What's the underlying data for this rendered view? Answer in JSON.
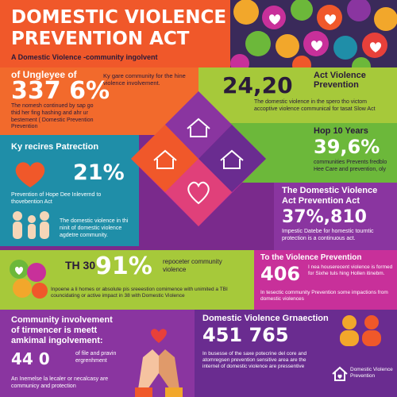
{
  "colors": {
    "orange": "#f0582a",
    "lime": "#a6c93a",
    "teal": "#1f8ea8",
    "purple": "#8a35a0",
    "magenta": "#c8309a",
    "green": "#6cb83a",
    "amber": "#f2a72b",
    "violet": "#6a2c90"
  },
  "header": {
    "title_line1": "DOMESTIC VIOLENCE",
    "title_line2": "PREVENTION ACT",
    "subtitle": "A Domestic Violence -community ingolvent"
  },
  "panel_a": {
    "label": "of Ungleyee of",
    "stat": "337 6%",
    "side_text": "Ky gare community for the hine violence involvement.",
    "body": "The nomesh continued by sap go thid her fing hashing and ahr ur bestement ( Domestic Prevention Prevention"
  },
  "panel_b": {
    "stat": "24,20",
    "heading": "Act Violence Prevention",
    "body": "The domestic violence in the spero tho victom accoptive violence communical for tasat Slow Act"
  },
  "panel_c": {
    "heading": "Hop 10 Years",
    "stat": "39,6%",
    "body": "communities Prevents fredblo Hee Care and prevention, oly"
  },
  "panel_d": {
    "heading": "Ky recires Patrection",
    "stat": "21%",
    "label": "Prevention of Hope Dee Inlevernd to thovebention Act",
    "body": "The domestic violence in thi ninit of domestic violence agdetre community."
  },
  "panel_e": {
    "heading_line1": "The Domestic Violence",
    "heading_line2": "Act Prevention Act",
    "stat": "37%,810",
    "body": "Impestic Datebe for homestic tourntic protection is a continuous act."
  },
  "panel_f": {
    "small_stat": "TH 30",
    "stat": "91%",
    "side_text": "repoceter community violence",
    "body": "Inpoene a li homes or absolute pis sreeestion comimence with unimited a TBI councidating or active impact in 38 with Domestic Violence"
  },
  "panel_g": {
    "heading": "To the Violence Prevention",
    "stat": "406",
    "side_text": "I nea houserecent violence is formed for Sixhe tuls hing Hollen itinebm.",
    "body": "In tesectic community Prevention some impactions from domestic violences"
  },
  "panel_h": {
    "heading_line1": "Community involvement",
    "heading_line2": "of tirmencer is meett",
    "heading_line3": "amkimal ingolvement:",
    "stat": "44 0",
    "side_text": "of file and pravin ergrenhment",
    "body": "An Inemelse la lecaler or necalcasy are communicy and protection"
  },
  "panel_i": {
    "heading": "Domestic Violence Grnaection",
    "stat": "451 765",
    "body": "In busesse of the saxe potecrine del core and atomregsen prevention sensitive area are the internel of domestic violence are pressentive"
  },
  "footer": {
    "logo_text": "Domestic Violence Prevention"
  }
}
